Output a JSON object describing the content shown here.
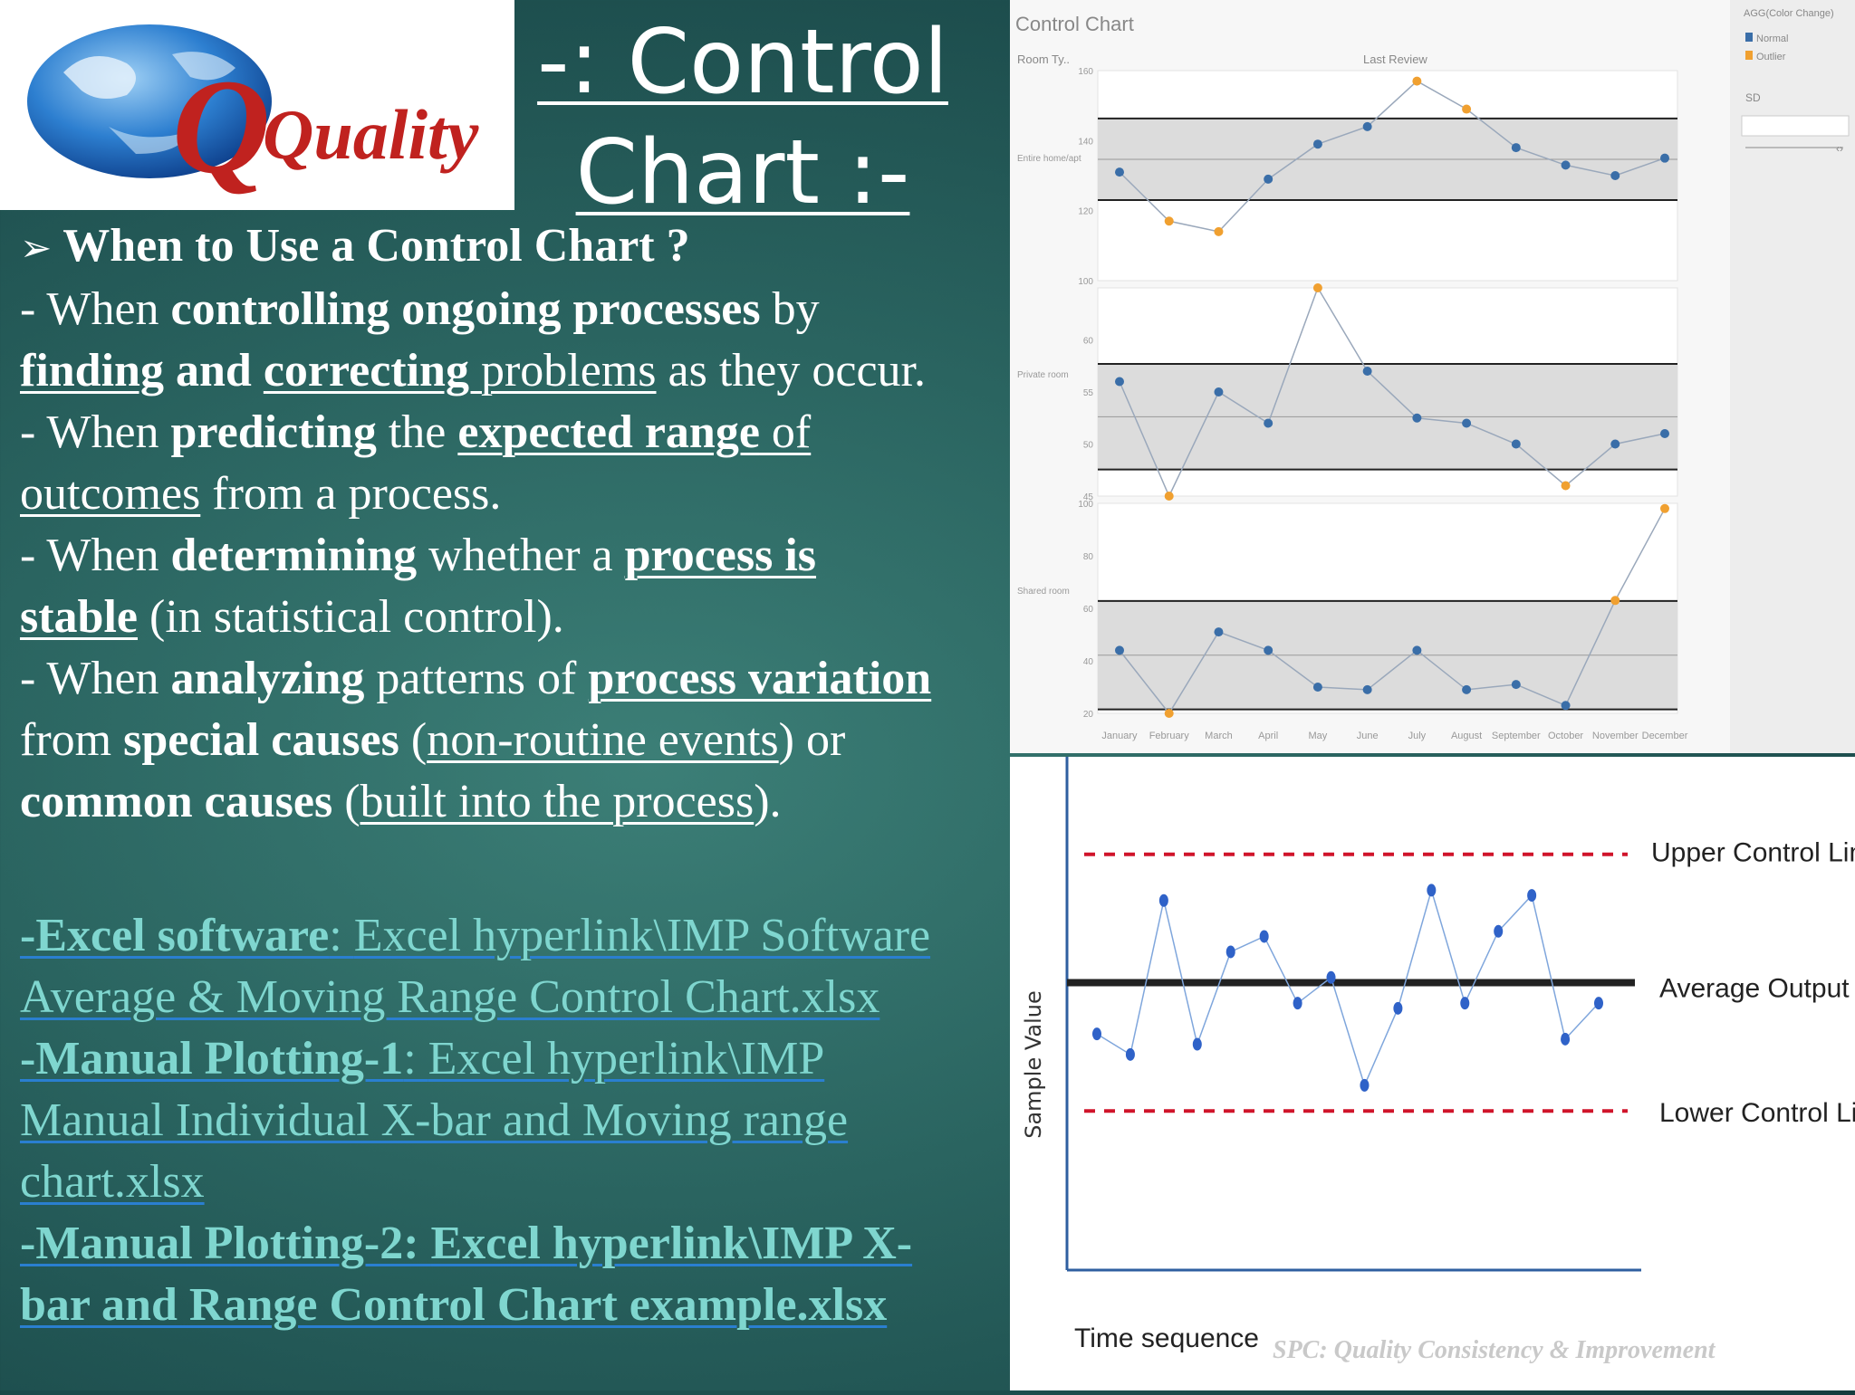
{
  "title": {
    "line1": "-: Control",
    "line2": "Chart :-"
  },
  "logo": {
    "text": "Quality",
    "icon": "globe-icon"
  },
  "content": {
    "heading": "When to Use a Control Chart ?",
    "bullet1": {
      "a": "- When ",
      "b": "controlling ongoing processes",
      "c": " by ",
      "d": "finding",
      "e": " and ",
      "f": "correcting ",
      "g": "problems",
      "h": " as they occur."
    },
    "bullet2": {
      "a": "- When ",
      "b": "predicting",
      "c": " the ",
      "d": "expected range",
      "e": " of ",
      "f": "outcomes",
      "g": " from a process."
    },
    "bullet3": {
      "a": "- When ",
      "b": "determining",
      "c": " whether a ",
      "d": "process is",
      "e": "stable",
      "f": " (in statistical control)."
    },
    "bullet4": {
      "a": "- When ",
      "b": "analyzing",
      "c": " patterns of ",
      "d": "process variation",
      "e": "from ",
      "f": "special causes",
      "g": " (",
      "h": "non-routine events",
      "i": ") or",
      "j": "common causes",
      "k": " (",
      "l": "built into the process",
      "m": ")."
    }
  },
  "links": {
    "excel": {
      "label": "-Excel software",
      "sep": ": ",
      "text1": "Excel hyperlink\\IMP Software",
      "text2": "Average & Moving Range Control Chart.xlsx"
    },
    "manual1": {
      "label": "-Manual Plotting-1",
      "sep": ": ",
      "text1": "Excel hyperlink\\IMP",
      "text2": "Manual Individual X-bar and Moving range",
      "text3": "chart.xlsx"
    },
    "manual2": {
      "label": "-Manual Plotting-2: ",
      "text1": "Excel hyperlink\\IMP X-",
      "text2": "bar and Range Control Chart example.xlsx"
    }
  },
  "top_chart": {
    "title": "Control Chart",
    "header_left": "Room Ty..",
    "header_mid": "Last Review",
    "legend_title": "AGG(Color Change)",
    "legend_items": [
      "Normal",
      "Outlier"
    ],
    "sd_label": "SD",
    "row_labels": [
      "Entire home/apt",
      "Private room",
      "Shared room"
    ]
  },
  "bottom_chart": {
    "ylabel": "Sample Value",
    "xlabel": "Time sequence",
    "ucl_label": "Upper Control Limit",
    "avg_label": "Average Output",
    "lcl_label": "Lower Control Limit",
    "footer": "SPC: Quality Consistency & Improvement"
  },
  "chart_data": [
    {
      "type": "line",
      "title": "Control Chart",
      "categories": [
        "January",
        "February",
        "March",
        "April",
        "May",
        "June",
        "July",
        "August",
        "September",
        "October",
        "November",
        "December"
      ],
      "legend": [
        "Normal",
        "Outlier"
      ],
      "colors": {
        "normal": "#3a6ea8",
        "outlier": "#f0a030"
      },
      "series": [
        {
          "name": "Entire home/apt",
          "values": [
            131,
            117,
            114,
            129,
            139,
            144,
            157,
            149,
            138,
            133,
            130,
            135
          ],
          "yticks": [
            100,
            120,
            140,
            160
          ],
          "ylim": [
            100,
            160
          ]
        },
        {
          "name": "Private room",
          "values": [
            56,
            45,
            55,
            52,
            65,
            57,
            52.5,
            52,
            50,
            46,
            50,
            51
          ],
          "yticks": [
            45,
            50,
            55,
            60
          ],
          "ylim": [
            45,
            65
          ]
        },
        {
          "name": "Shared room",
          "values": [
            44,
            20,
            51,
            44,
            30,
            29,
            44,
            29,
            31,
            23,
            63,
            98
          ],
          "yticks": [
            20,
            40,
            60,
            80,
            100
          ],
          "ylim": [
            20,
            100
          ]
        }
      ]
    },
    {
      "type": "line",
      "xlabel": "Time sequence",
      "ylabel": "Sample Value",
      "ylim": [
        0,
        10
      ],
      "ucl": 8.1,
      "average": 5.6,
      "lcl": 3.1,
      "values": [
        4.6,
        4.2,
        7.2,
        4.4,
        6.2,
        6.5,
        5.2,
        5.7,
        3.6,
        5.1,
        7.4,
        5.2,
        6.6,
        7.3,
        4.5,
        5.2
      ]
    }
  ]
}
